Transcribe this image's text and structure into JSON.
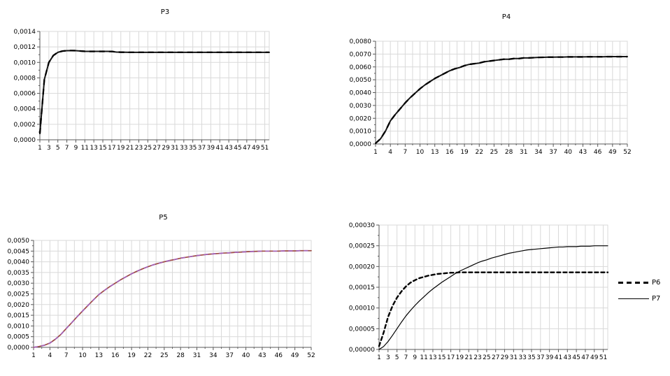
{
  "page": {
    "background": "#ffffff",
    "grid_color": "#d9d9d9",
    "axis_color": "#595959"
  },
  "chart_data": [
    {
      "type": "line",
      "title": "P3",
      "grid": true,
      "x": {
        "min": 1,
        "max": 52,
        "label_step": 2,
        "grid_step": 2,
        "labels": [
          "1",
          "3",
          "5",
          "7",
          "9",
          "11",
          "13",
          "15",
          "17",
          "19",
          "21",
          "23",
          "25",
          "27",
          "29",
          "31",
          "33",
          "35",
          "37",
          "39",
          "41",
          "43",
          "45",
          "47",
          "49",
          "51"
        ]
      },
      "y": {
        "min": 0,
        "max": 0.0014,
        "label_step": 0.0002,
        "labels": [
          "0,0000",
          "0,0002",
          "0,0004",
          "0,0006",
          "0,0008",
          "0,0010",
          "0,0012",
          "0,0014"
        ]
      },
      "series": [
        {
          "name": "P3",
          "color": "#141414",
          "width": 2,
          "overlay": {
            "color": "#000000",
            "width": 2.3,
            "dash": "8 6"
          },
          "values": [
            8e-05,
            0.00078,
            0.001,
            0.00109,
            0.00113,
            0.001146,
            0.001152,
            0.001153,
            0.001152,
            0.001147,
            0.001143,
            0.001142,
            0.001142,
            0.001142,
            0.001142,
            0.001142,
            0.001141,
            0.001134,
            0.001132,
            0.001131,
            0.00113,
            0.00113,
            0.00113,
            0.00113,
            0.00113,
            0.00113,
            0.00113,
            0.00113,
            0.00113,
            0.00113,
            0.00113,
            0.00113,
            0.00113,
            0.00113,
            0.00113,
            0.00113,
            0.00113,
            0.00113,
            0.00113,
            0.00113,
            0.00113,
            0.00113,
            0.00113,
            0.00113,
            0.00113,
            0.00113,
            0.00113,
            0.00113,
            0.00113,
            0.00113,
            0.00113,
            0.00113
          ]
        }
      ]
    },
    {
      "type": "line",
      "title": "P4",
      "grid": true,
      "x": {
        "min": 1,
        "max": 52,
        "label_step": 3,
        "grid_step": 1.5,
        "labels": [
          "1",
          "4",
          "7",
          "10",
          "13",
          "16",
          "19",
          "22",
          "25",
          "28",
          "31",
          "34",
          "37",
          "40",
          "43",
          "46",
          "49",
          "52"
        ]
      },
      "y": {
        "min": 0,
        "max": 0.008,
        "label_step": 0.001,
        "labels": [
          "0,0000",
          "0,0010",
          "0,0020",
          "0,0030",
          "0,0040",
          "0,0050",
          "0,0060",
          "0,0070",
          "0,0080"
        ]
      },
      "series": [
        {
          "name": "P4",
          "color": "#141414",
          "width": 2,
          "overlay": {
            "color": "#000000",
            "width": 2.3,
            "dash": "8 6"
          },
          "values": [
            5e-05,
            0.0004,
            0.001,
            0.0018,
            0.0023,
            0.00275,
            0.0032,
            0.0036,
            0.00395,
            0.0043,
            0.0046,
            0.00485,
            0.0051,
            0.0053,
            0.0055,
            0.0057,
            0.00585,
            0.00595,
            0.0061,
            0.0062,
            0.00625,
            0.0063,
            0.0064,
            0.00645,
            0.0065,
            0.00655,
            0.0066,
            0.0066,
            0.00665,
            0.00665,
            0.0067,
            0.0067,
            0.00672,
            0.00674,
            0.00675,
            0.00676,
            0.00676,
            0.00677,
            0.00677,
            0.00678,
            0.00678,
            0.00678,
            0.00678,
            0.00679,
            0.00679,
            0.00679,
            0.00679,
            0.0068,
            0.0068,
            0.0068,
            0.0068,
            0.0068
          ]
        }
      ]
    },
    {
      "type": "line",
      "title": "P5",
      "grid": true,
      "x": {
        "min": 1,
        "max": 52,
        "label_step": 3,
        "grid_step": 1.5,
        "labels": [
          "1",
          "4",
          "7",
          "10",
          "13",
          "16",
          "19",
          "22",
          "25",
          "28",
          "31",
          "34",
          "37",
          "40",
          "43",
          "46",
          "49",
          "52"
        ]
      },
      "y": {
        "min": 0,
        "max": 0.005,
        "label_step": 0.0005,
        "labels": [
          "0,0000",
          "0,0005",
          "0,0010",
          "0,0015",
          "0,0020",
          "0,0025",
          "0,0030",
          "0,0035",
          "0,0040",
          "0,0045",
          "0,0050"
        ]
      },
      "series": [
        {
          "name": "P5",
          "color": "#9c4a42",
          "width": 1.7,
          "overlay": {
            "color": "#a361b8",
            "width": 1.7,
            "dash": "6 5"
          },
          "values": [
            0,
            4e-05,
            0.0001,
            0.0002,
            0.00038,
            0.0006,
            0.00088,
            0.00115,
            0.00143,
            0.0017,
            0.00196,
            0.00222,
            0.00247,
            0.00266,
            0.00284,
            0.003,
            0.00316,
            0.0033,
            0.00344,
            0.00356,
            0.00367,
            0.00377,
            0.00386,
            0.00393,
            0.004,
            0.00406,
            0.00411,
            0.00417,
            0.00421,
            0.00425,
            0.00429,
            0.00432,
            0.00435,
            0.00437,
            0.00439,
            0.00441,
            0.00442,
            0.00444,
            0.00445,
            0.00447,
            0.00448,
            0.00449,
            0.0045,
            0.0045,
            0.0045,
            0.0045,
            0.00451,
            0.00451,
            0.00451,
            0.00452,
            0.00452,
            0.00452
          ]
        }
      ]
    },
    {
      "type": "line",
      "title": "",
      "grid": true,
      "legend": {
        "position": "right",
        "items": [
          {
            "label": "P6",
            "style": "dashed"
          },
          {
            "label": "P7",
            "style": "solid"
          }
        ]
      },
      "x": {
        "min": 1,
        "max": 52,
        "label_step": 2,
        "grid_step": 2,
        "labels": [
          "1",
          "3",
          "5",
          "7",
          "9",
          "11",
          "13",
          "15",
          "17",
          "19",
          "21",
          "23",
          "25",
          "27",
          "29",
          "31",
          "33",
          "35",
          "37",
          "39",
          "41",
          "43",
          "45",
          "47",
          "49",
          "51"
        ]
      },
      "y": {
        "min": 0,
        "max": 0.0003,
        "label_step": 5e-05,
        "labels": [
          "0,00000",
          "0,00005",
          "0,00010",
          "0,00015",
          "0,00020",
          "0,00025",
          "0,00030"
        ]
      },
      "series": [
        {
          "name": "P6",
          "color": "#000000",
          "width": 2.4,
          "dash": "5 4",
          "values": [
            8e-06,
            4e-05,
            7.8e-05,
            0.000105,
            0.000125,
            0.00014,
            0.000152,
            0.000161,
            0.000167,
            0.000172,
            0.000175,
            0.000178,
            0.00018,
            0.000182,
            0.000183,
            0.000184,
            0.000185,
            0.000185,
            0.000186,
            0.000186,
            0.000186,
            0.000186,
            0.000186,
            0.000186,
            0.000186,
            0.000186,
            0.000186,
            0.000186,
            0.000186,
            0.000186,
            0.000186,
            0.000186,
            0.000186,
            0.000186,
            0.000186,
            0.000186,
            0.000186,
            0.000186,
            0.000186,
            0.000186,
            0.000186,
            0.000186,
            0.000186,
            0.000186,
            0.000186,
            0.000186,
            0.000186,
            0.000186,
            0.000186,
            0.000186,
            0.000186,
            0.000186
          ]
        },
        {
          "name": "P7",
          "color": "#000000",
          "width": 1.2,
          "values": [
            0,
            7e-06,
            1.9e-05,
            3.4e-05,
            5e-05,
            6.6e-05,
            8.1e-05,
            9.4e-05,
            0.000106,
            0.000117,
            0.000127,
            0.000137,
            0.000146,
            0.000154,
            0.000162,
            0.000169,
            0.000176,
            0.000183,
            0.000189,
            0.000194,
            0.000199,
            0.000204,
            0.000209,
            0.000213,
            0.000216,
            0.00022,
            0.000223,
            0.000226,
            0.000229,
            0.000232,
            0.000234,
            0.000236,
            0.000238,
            0.00024,
            0.000241,
            0.000242,
            0.000243,
            0.000244,
            0.000245,
            0.000246,
            0.000247,
            0.000247,
            0.000248,
            0.000248,
            0.000248,
            0.000249,
            0.000249,
            0.000249,
            0.00025,
            0.00025,
            0.00025,
            0.00025
          ]
        }
      ]
    }
  ]
}
